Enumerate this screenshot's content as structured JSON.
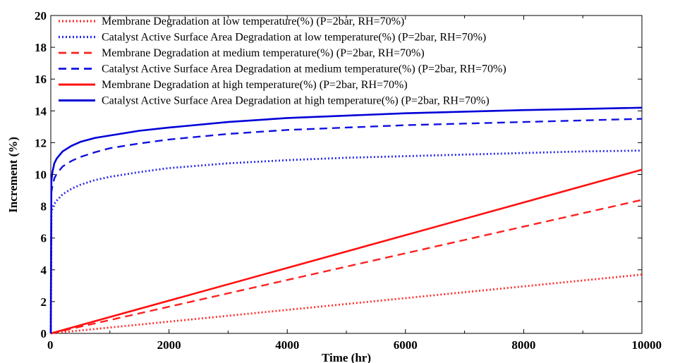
{
  "chart_data": {
    "type": "line",
    "title": "",
    "xlabel": "Time (hr)",
    "ylabel": "Increment (%)",
    "xlim": [
      0,
      10000
    ],
    "ylim": [
      0,
      20
    ],
    "x_ticks": [
      0,
      2000,
      4000,
      6000,
      8000,
      10000
    ],
    "y_ticks": [
      0,
      2,
      4,
      6,
      8,
      10,
      12,
      14,
      16,
      18,
      20
    ],
    "grid": false,
    "legend_position": "top-left",
    "series": [
      {
        "name": "Membrane Degradation at low temperature(%)  (P=2bar, RH=70%)",
        "color": "#ff3030",
        "style": "dotted",
        "x": [
          0,
          10000
        ],
        "y": [
          0,
          3.7
        ]
      },
      {
        "name": "Catalyst Active Surface Area Degradation at low temperature(%)  (P=2bar, RH=70%)",
        "color": "#2a2ae8",
        "style": "dotted",
        "x": [
          0,
          10,
          30,
          60,
          100,
          200,
          350,
          500,
          750,
          1000,
          1500,
          2000,
          3000,
          4000,
          5000,
          6000,
          7000,
          8000,
          9000,
          10000
        ],
        "y": [
          0,
          7.6,
          7.9,
          8.15,
          8.35,
          8.75,
          9.1,
          9.35,
          9.65,
          9.85,
          10.15,
          10.4,
          10.7,
          10.9,
          11.05,
          11.15,
          11.25,
          11.35,
          11.45,
          11.5
        ]
      },
      {
        "name": "Membrane Degradation at medium temperature(%)  (P=2bar, RH=70%)",
        "color": "#ff2020",
        "style": "dashed",
        "x": [
          0,
          10000
        ],
        "y": [
          0,
          8.4
        ]
      },
      {
        "name": "Catalyst Active Surface Area Degradation at medium temperature(%)  (P=2bar, RH=70%)",
        "color": "#1010e0",
        "style": "dashed",
        "x": [
          0,
          10,
          30,
          60,
          100,
          200,
          350,
          500,
          750,
          1000,
          1500,
          2000,
          3000,
          4000,
          5000,
          6000,
          7000,
          8000,
          9000,
          10000
        ],
        "y": [
          0,
          8.9,
          9.3,
          9.75,
          10.05,
          10.5,
          10.85,
          11.1,
          11.4,
          11.65,
          11.95,
          12.2,
          12.55,
          12.8,
          12.95,
          13.1,
          13.2,
          13.3,
          13.4,
          13.5
        ]
      },
      {
        "name": "Membrane Degradation at high temperature(%)  (P=2bar, RH=70%)",
        "color": "#ff1010",
        "style": "solid",
        "x": [
          0,
          10000
        ],
        "y": [
          0,
          10.3
        ]
      },
      {
        "name": "Catalyst Active Surface Area Degradation at high temperature(%)  (P=2bar, RH=70%)",
        "color": "#0000d8",
        "style": "solid",
        "x": [
          0,
          10,
          30,
          60,
          100,
          200,
          350,
          500,
          750,
          1000,
          1500,
          2000,
          3000,
          4000,
          5000,
          6000,
          7000,
          8000,
          9000,
          10000
        ],
        "y": [
          0,
          9.6,
          10.2,
          10.7,
          11.0,
          11.45,
          11.8,
          12.05,
          12.3,
          12.45,
          12.75,
          12.95,
          13.3,
          13.55,
          13.7,
          13.85,
          13.95,
          14.05,
          14.12,
          14.2
        ]
      }
    ]
  }
}
